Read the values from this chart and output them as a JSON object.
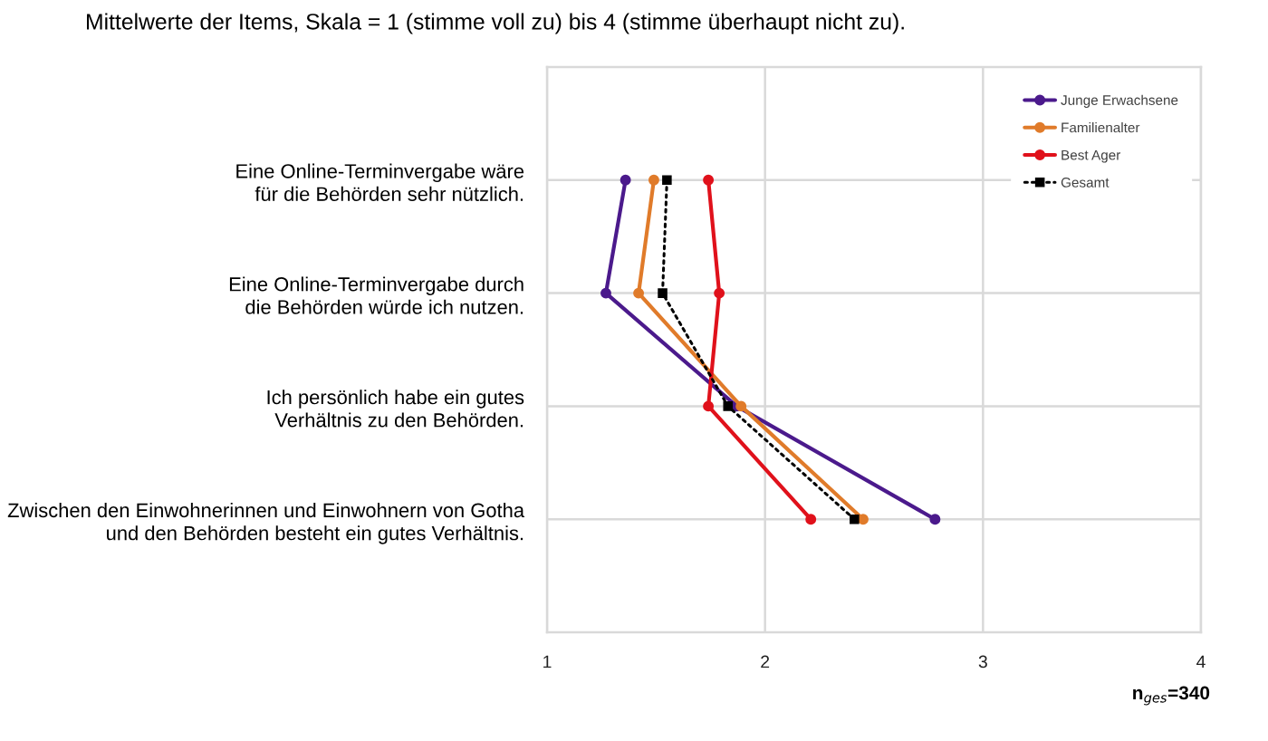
{
  "chart_data": {
    "type": "line",
    "orientation": "horizontal",
    "title": "Mittelwerte der Items, Skala = 1 (stimme voll zu) bis 4 (stimme überhaupt nicht zu).",
    "categories": [
      "Eine Online-Terminvergabe wäre\nfür die Behörden sehr nützlich.",
      "Eine Online-Terminvergabe durch\ndie Behörden würde ich nutzen.",
      "Ich persönlich habe ein gutes\nVerhältnis zu den Behörden.",
      "Zwischen den Einwohnerinnen und Einwohnern von Gotha\nund den Behörden besteht ein gutes Verhältnis."
    ],
    "series": [
      {
        "name": "Junge Erwachsene",
        "color": "#4b1a8c",
        "marker": "circle",
        "line_style": "solid",
        "values": [
          1.36,
          1.27,
          1.87,
          2.78
        ]
      },
      {
        "name": "Familienalter",
        "color": "#e07b2a",
        "marker": "circle",
        "line_style": "solid",
        "values": [
          1.49,
          1.42,
          1.89,
          2.45
        ]
      },
      {
        "name": "Best Ager",
        "color": "#e0111b",
        "marker": "circle",
        "line_style": "solid",
        "values": [
          1.74,
          1.79,
          1.74,
          2.21
        ]
      },
      {
        "name": "Gesamt",
        "color": "#000000",
        "marker": "square",
        "line_style": "dotted",
        "values": [
          1.55,
          1.53,
          1.83,
          2.41
        ]
      }
    ],
    "xlim": [
      1,
      4
    ],
    "xticks": [
      1,
      2,
      3,
      4
    ],
    "grid": true,
    "legend": "top right",
    "annotations": [
      "n$_{ges}$=340"
    ]
  }
}
